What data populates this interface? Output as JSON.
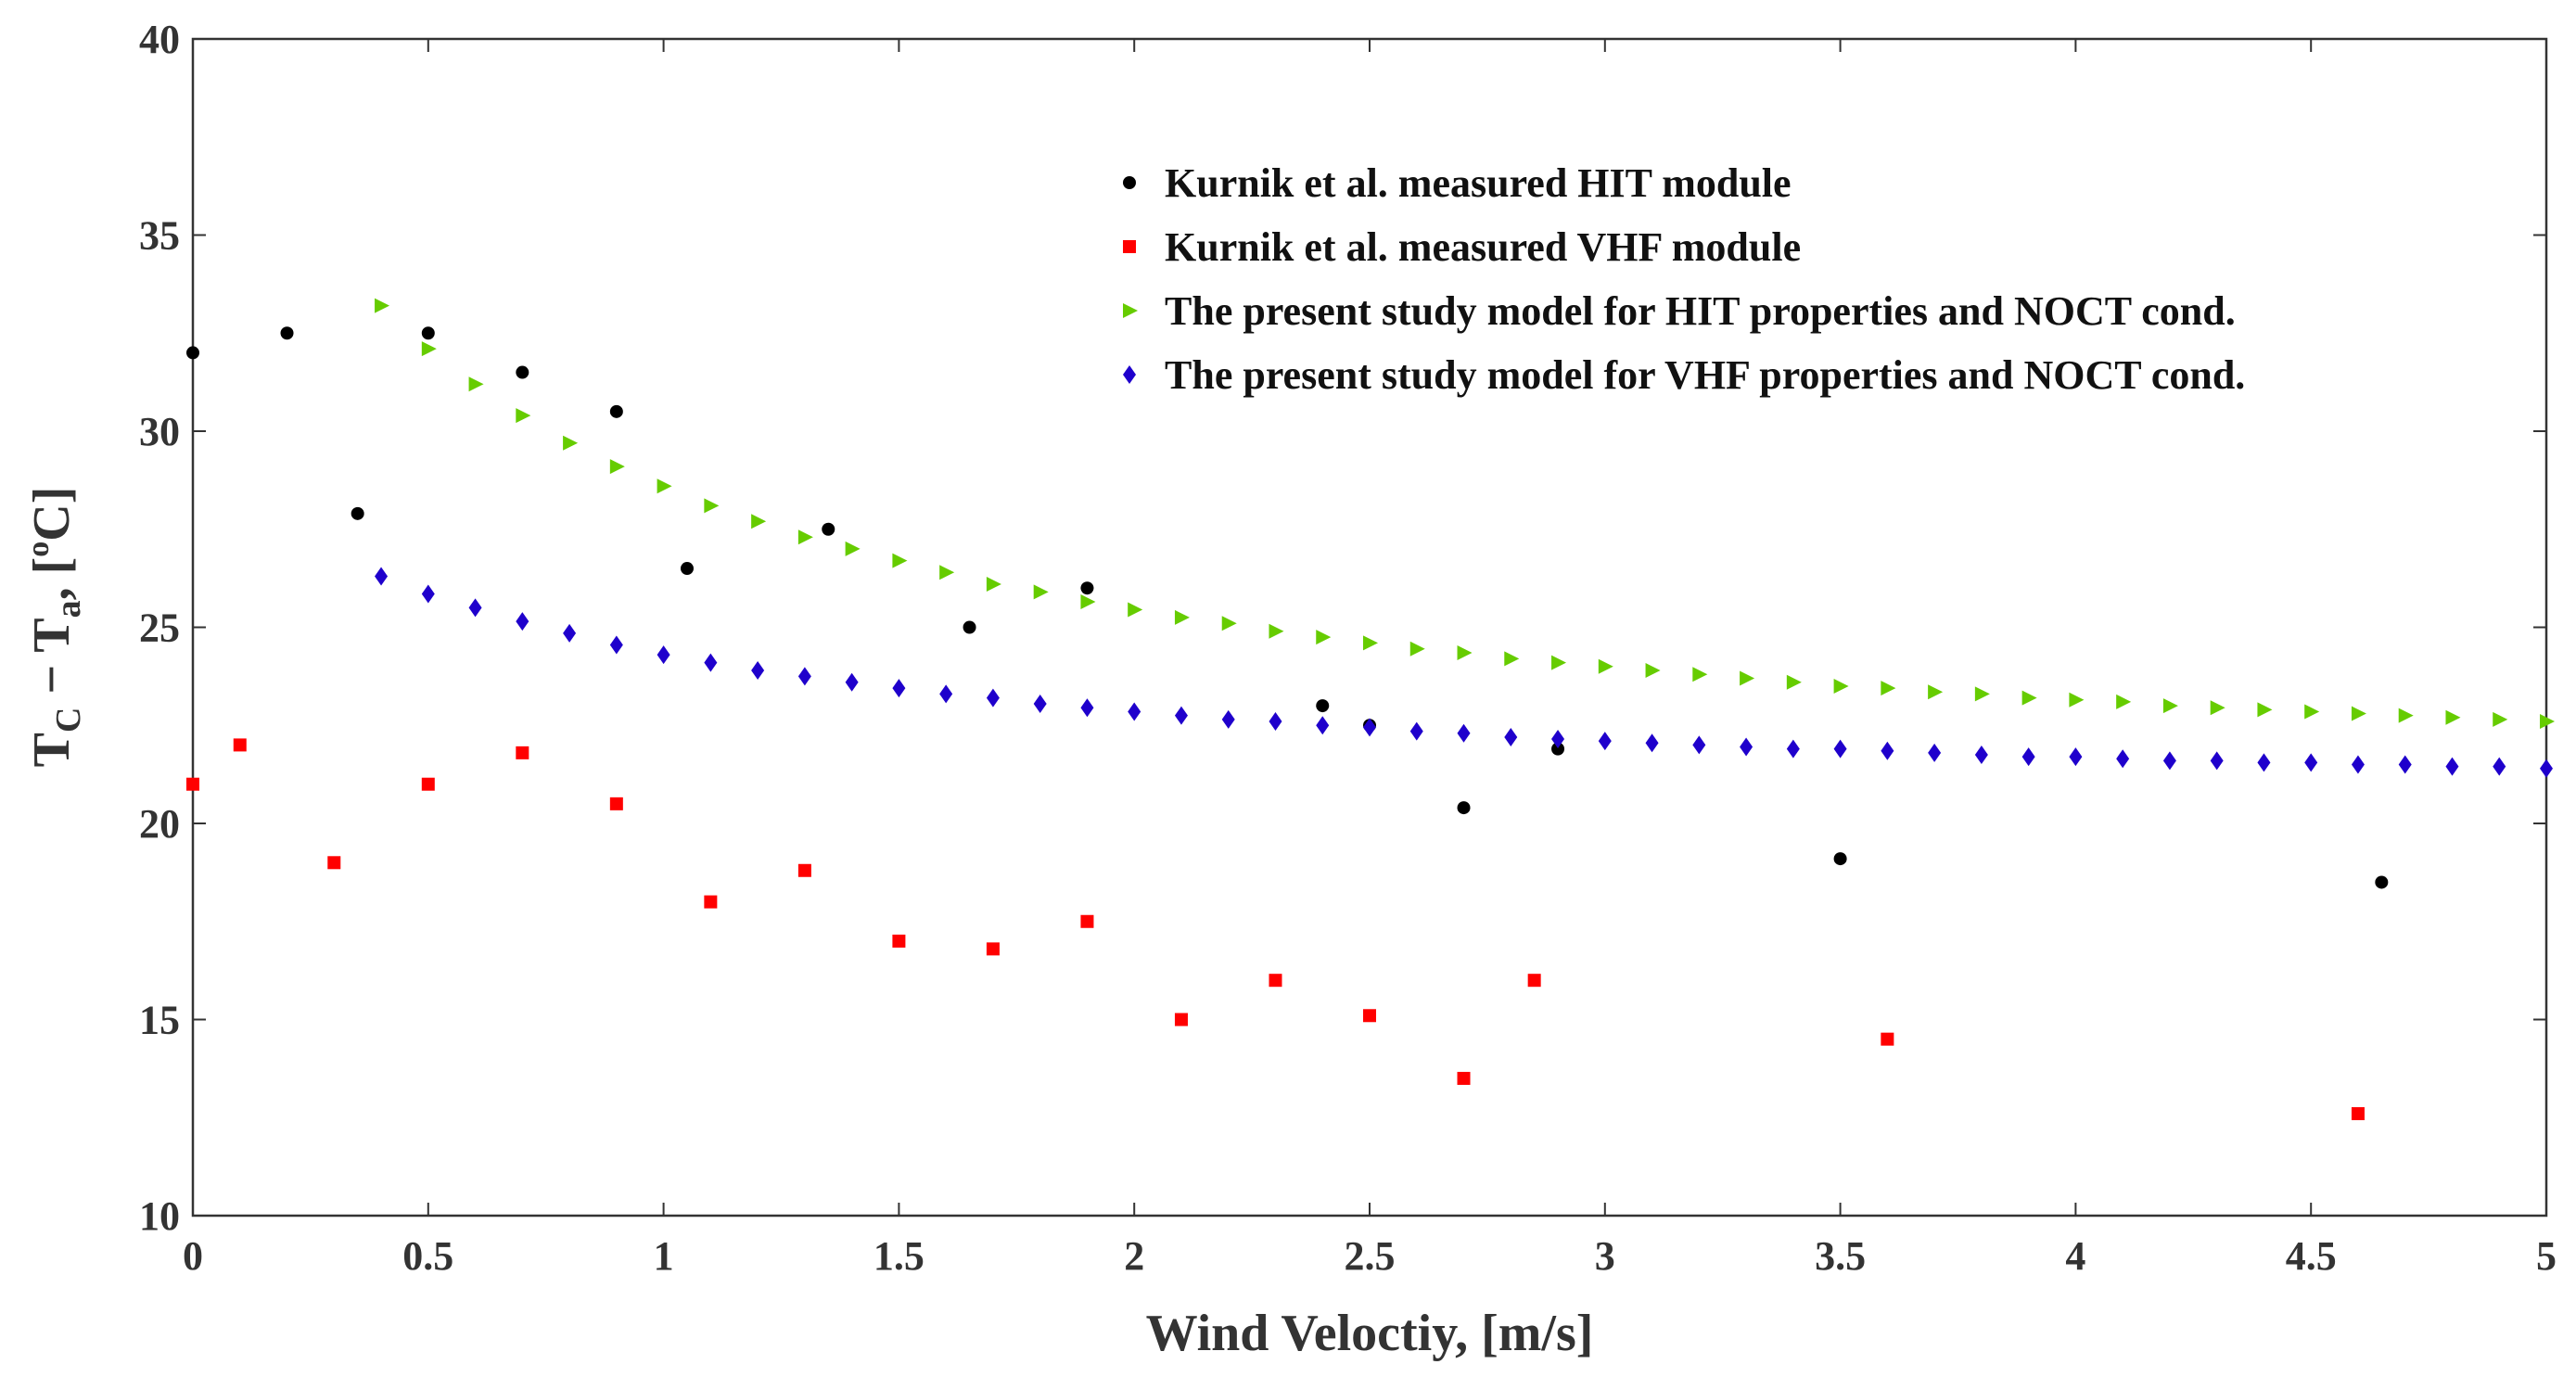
{
  "chart_data": {
    "type": "scatter",
    "title": "",
    "xlabel": "Wind Veloctiy, [m/s]",
    "ylabel": {
      "base": "T",
      "sub1": "C",
      "minus": " − T",
      "sub2": "a",
      "comma": ", [",
      "deg": "o",
      "unit": "C]"
    },
    "xlim": [
      0,
      5
    ],
    "ylim": [
      10,
      40
    ],
    "xticks": [
      "0",
      "0.5",
      "1",
      "1.5",
      "2",
      "2.5",
      "3",
      "3.5",
      "4",
      "4.5",
      "5"
    ],
    "yticks": [
      "10",
      "15",
      "20",
      "25",
      "30",
      "35",
      "40"
    ],
    "grid": false,
    "legend_position": "top-right",
    "series": [
      {
        "name": "Kurnik et al. measured HIT module",
        "marker": "circle",
        "color": "#000000",
        "x": [
          0,
          0.2,
          0.35,
          0.5,
          0.7,
          0.9,
          1.05,
          1.35,
          1.65,
          1.9,
          2.4,
          2.5,
          2.7,
          2.9,
          3.5,
          4.65
        ],
        "y": [
          32.0,
          32.5,
          27.9,
          32.5,
          31.5,
          30.5,
          26.5,
          27.5,
          25.0,
          26.0,
          23.0,
          22.5,
          20.4,
          21.9,
          19.1,
          18.5
        ]
      },
      {
        "name": "Kurnik et al. measured VHF module",
        "marker": "square",
        "color": "#ff0000",
        "x": [
          0,
          0.1,
          0.3,
          0.5,
          0.7,
          0.9,
          1.1,
          1.3,
          1.5,
          1.7,
          1.9,
          2.1,
          2.3,
          2.5,
          2.7,
          2.85,
          3.6,
          4.6
        ],
        "y": [
          21.0,
          22.0,
          19.0,
          21.0,
          21.8,
          20.5,
          18.0,
          18.8,
          17.0,
          16.8,
          17.5,
          15.0,
          16.0,
          15.1,
          13.5,
          16.0,
          14.5,
          12.6
        ]
      },
      {
        "name": "The present study model for HIT properties and NOCT cond.",
        "marker": "triangle-right",
        "color": "#66cc00",
        "x": [
          0.4,
          0.5,
          0.6,
          0.7,
          0.8,
          0.9,
          1.0,
          1.1,
          1.2,
          1.3,
          1.4,
          1.5,
          1.6,
          1.7,
          1.8,
          1.9,
          2.0,
          2.1,
          2.2,
          2.3,
          2.4,
          2.5,
          2.6,
          2.7,
          2.8,
          2.9,
          3.0,
          3.1,
          3.2,
          3.3,
          3.4,
          3.5,
          3.6,
          3.7,
          3.8,
          3.9,
          4.0,
          4.1,
          4.2,
          4.3,
          4.4,
          4.5,
          4.6,
          4.7,
          4.8,
          4.9,
          5.0
        ],
        "y": [
          33.2,
          32.1,
          31.2,
          30.4,
          29.7,
          29.1,
          28.6,
          28.1,
          27.7,
          27.3,
          27.0,
          26.7,
          26.4,
          26.1,
          25.9,
          25.65,
          25.45,
          25.25,
          25.1,
          24.9,
          24.75,
          24.6,
          24.45,
          24.35,
          24.2,
          24.1,
          24.0,
          23.9,
          23.8,
          23.7,
          23.6,
          23.5,
          23.45,
          23.35,
          23.3,
          23.2,
          23.15,
          23.1,
          23.0,
          22.95,
          22.9,
          22.85,
          22.8,
          22.75,
          22.7,
          22.65,
          22.6
        ]
      },
      {
        "name": "The present study model for VHF properties and NOCT cond.",
        "marker": "diamond",
        "color": "#1f00cc",
        "x": [
          0.4,
          0.5,
          0.6,
          0.7,
          0.8,
          0.9,
          1.0,
          1.1,
          1.2,
          1.3,
          1.4,
          1.5,
          1.6,
          1.7,
          1.8,
          1.9,
          2.0,
          2.1,
          2.2,
          2.3,
          2.4,
          2.5,
          2.6,
          2.7,
          2.8,
          2.9,
          3.0,
          3.1,
          3.2,
          3.3,
          3.4,
          3.5,
          3.6,
          3.7,
          3.8,
          3.9,
          4.0,
          4.1,
          4.2,
          4.3,
          4.4,
          4.5,
          4.6,
          4.7,
          4.8,
          4.9,
          5.0
        ],
        "y": [
          26.3,
          25.85,
          25.5,
          25.15,
          24.85,
          24.55,
          24.3,
          24.1,
          23.9,
          23.75,
          23.6,
          23.45,
          23.3,
          23.2,
          23.05,
          22.95,
          22.85,
          22.75,
          22.65,
          22.6,
          22.5,
          22.45,
          22.35,
          22.3,
          22.2,
          22.15,
          22.1,
          22.05,
          22.0,
          21.95,
          21.9,
          21.9,
          21.85,
          21.8,
          21.75,
          21.7,
          21.7,
          21.65,
          21.6,
          21.6,
          21.55,
          21.55,
          21.5,
          21.5,
          21.45,
          21.45,
          21.4
        ]
      }
    ]
  }
}
